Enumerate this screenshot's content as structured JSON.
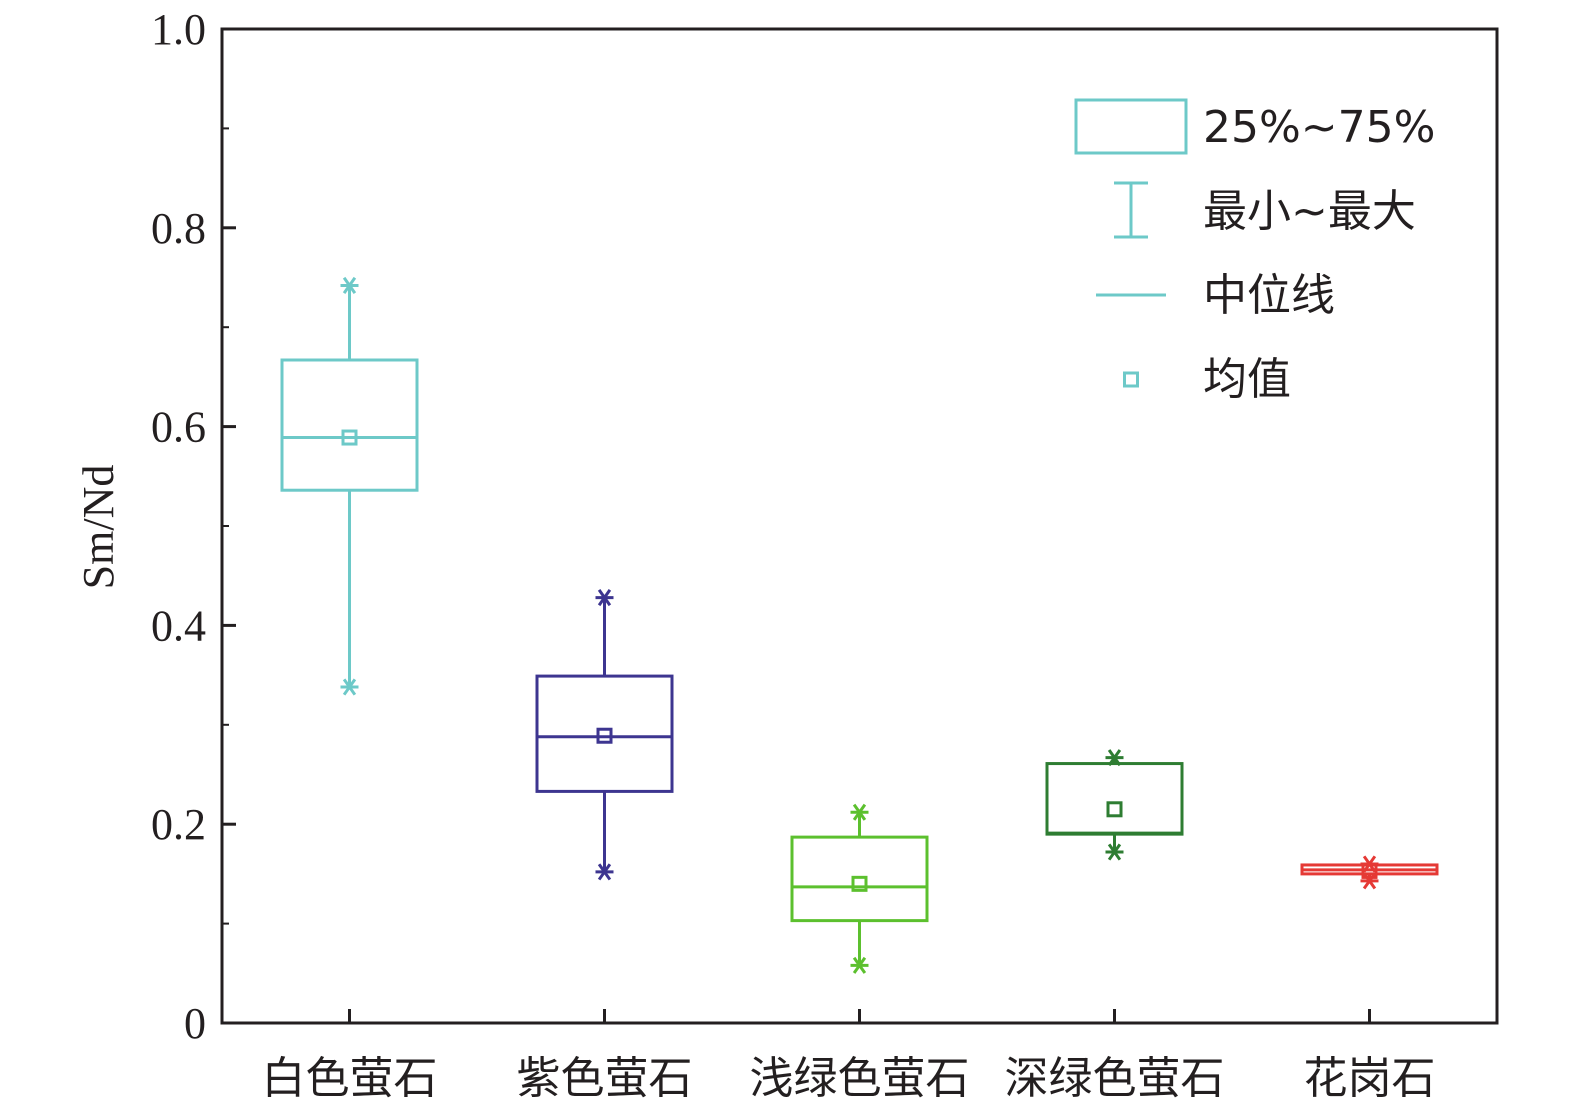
{
  "chart_data": {
    "type": "box",
    "ylabel": "Sm/Nd",
    "ylim": [
      0,
      1.0
    ],
    "yticks": [
      0,
      0.2,
      0.4,
      0.6,
      0.8,
      1.0
    ],
    "ytick_labels": [
      "0",
      "0.2",
      "0.4",
      "0.6",
      "0.8",
      "1.0"
    ],
    "categories": [
      "白色萤石",
      "紫色萤石",
      "浅绿色萤石",
      "深绿色萤石",
      "花岗石"
    ],
    "boxes": [
      {
        "category": "白色萤石",
        "min": 0.338,
        "q1": 0.536,
        "median": 0.589,
        "q3": 0.667,
        "max": 0.742,
        "mean": 0.589,
        "color": "#6dc9c8",
        "thin_legend": false
      },
      {
        "category": "紫色萤石",
        "min": 0.152,
        "q1": 0.233,
        "median": 0.288,
        "q3": 0.349,
        "max": 0.428,
        "mean": 0.289,
        "color": "#3d3590"
      },
      {
        "category": "浅绿色萤石",
        "min": 0.058,
        "q1": 0.103,
        "median": 0.137,
        "q3": 0.187,
        "max": 0.212,
        "mean": 0.14,
        "color": "#5cc02e"
      },
      {
        "category": "深绿色萤石",
        "min": 0.172,
        "q1": 0.19,
        "median": 0.191,
        "q3": 0.261,
        "max": 0.267,
        "mean": 0.215,
        "color": "#2e7d32"
      },
      {
        "category": "花岗石",
        "min": 0.143,
        "q1": 0.15,
        "median": 0.154,
        "q3": 0.159,
        "max": 0.16,
        "mean": 0.153,
        "color": "#e53935"
      }
    ],
    "legend": {
      "position": "top-right",
      "items": [
        "25%~75%",
        "最小~最大",
        "中位线",
        "均值"
      ],
      "color": "#6dc9c8"
    },
    "grid": false
  }
}
